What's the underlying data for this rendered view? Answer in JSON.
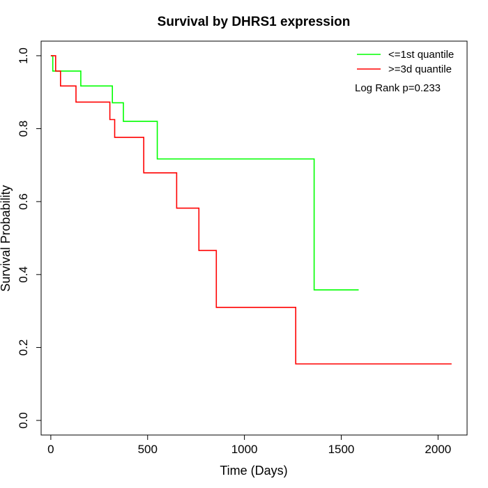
{
  "chart_data": {
    "type": "line",
    "title": "Survival by DHRS1 expression",
    "xlabel": "Time (Days)",
    "ylabel": "Survival Probability",
    "xlim": [
      -50,
      2150
    ],
    "ylim": [
      -0.04,
      1.04
    ],
    "x_ticks": [
      0,
      500,
      1000,
      1500,
      2000
    ],
    "x_tick_labels": [
      "0",
      "500",
      "1000",
      "1500",
      "2000"
    ],
    "y_ticks": [
      0.0,
      0.2,
      0.4,
      0.6,
      0.8,
      1.0
    ],
    "y_tick_labels": [
      "0.0",
      "0.2",
      "0.4",
      "0.6",
      "0.8",
      "1.0"
    ],
    "legend_position": "top-right",
    "annotation": "Log Rank p=0.233",
    "grid": false,
    "series": [
      {
        "name": "<=1st quantile",
        "color": "#00ff00",
        "step": true,
        "points": [
          [
            0,
            1.0
          ],
          [
            10,
            1.0
          ],
          [
            10,
            0.958
          ],
          [
            155,
            0.958
          ],
          [
            155,
            0.917
          ],
          [
            318,
            0.917
          ],
          [
            318,
            0.871
          ],
          [
            375,
            0.871
          ],
          [
            375,
            0.82
          ],
          [
            550,
            0.82
          ],
          [
            550,
            0.717
          ],
          [
            1360,
            0.717
          ],
          [
            1360,
            0.358
          ],
          [
            1590,
            0.358
          ]
        ]
      },
      {
        "name": ">=3d quantile",
        "color": "#ff0000",
        "step": true,
        "points": [
          [
            0,
            1.0
          ],
          [
            25,
            1.0
          ],
          [
            25,
            0.958
          ],
          [
            50,
            0.958
          ],
          [
            50,
            0.917
          ],
          [
            130,
            0.917
          ],
          [
            130,
            0.873
          ],
          [
            305,
            0.873
          ],
          [
            305,
            0.825
          ],
          [
            330,
            0.825
          ],
          [
            330,
            0.776
          ],
          [
            480,
            0.776
          ],
          [
            480,
            0.679
          ],
          [
            650,
            0.679
          ],
          [
            650,
            0.582
          ],
          [
            765,
            0.582
          ],
          [
            765,
            0.466
          ],
          [
            855,
            0.466
          ],
          [
            855,
            0.31
          ],
          [
            1265,
            0.31
          ],
          [
            1265,
            0.155
          ],
          [
            2070,
            0.155
          ]
        ]
      }
    ]
  }
}
